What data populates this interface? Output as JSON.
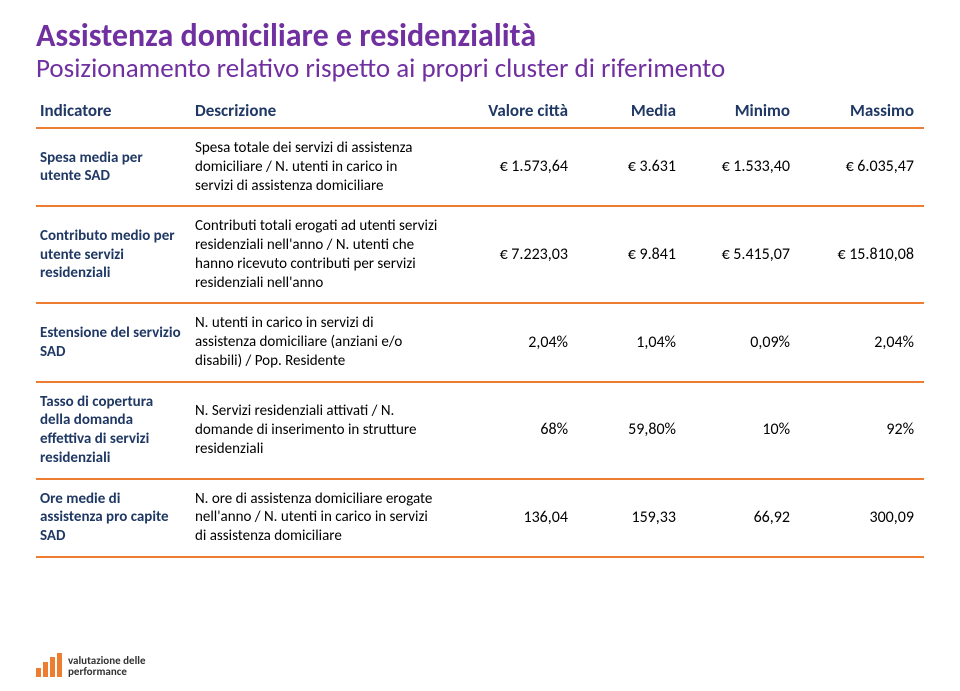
{
  "title": "Assistenza domiciliare e residenzialità",
  "subtitle": "Posizionamento relativo rispetto ai propri cluster di riferimento",
  "headers": {
    "indicatore": "Indicatore",
    "descrizione": "Descrizione",
    "valore": "Valore città",
    "media": "Media",
    "minimo": "Minimo",
    "massimo": "Massimo"
  },
  "rows": [
    {
      "ind": "Spesa media per utente SAD",
      "desc": "Spesa totale dei servizi di assistenza domiciliare / N. utenti in carico in servizi di assistenza domiciliare",
      "val": "€    1.573,64",
      "med": "€    3.631",
      "min": "€    1.533,40",
      "max": "€    6.035,47"
    },
    {
      "ind": "Contributo medio per utente servizi residenziali",
      "desc": "Contributi totali erogati ad utenti servizi residenziali nell'anno / N. utenti che hanno ricevuto contributi per servizi residenziali nell'anno",
      "val": "€    7.223,03",
      "med": "€    9.841",
      "min": "€    5.415,07",
      "max": "€    15.810,08"
    },
    {
      "ind": "Estensione del servizio SAD",
      "desc": "N. utenti in carico in servizi di assistenza domiciliare (anziani e/o disabili) / Pop. Residente",
      "val": "2,04%",
      "med": "1,04%",
      "min": "0,09%",
      "max": "2,04%"
    },
    {
      "ind": "Tasso di copertura della domanda effettiva di servizi residenziali",
      "desc": "N. Servizi residenziali attivati / N. domande di inserimento in strutture residenziali",
      "val": "68%",
      "med": "59,80%",
      "min": "10%",
      "max": "92%"
    },
    {
      "ind": "Ore medie di assistenza pro capite SAD",
      "desc": "N. ore di assistenza domiciliare erogate nell'anno / N. utenti in carico in servizi di assistenza domiciliare",
      "val": "136,04",
      "med": "159,33",
      "min": "66,92",
      "max": "300,09"
    }
  ],
  "logo": {
    "line1": "valutazione delle",
    "line2": "performance"
  }
}
